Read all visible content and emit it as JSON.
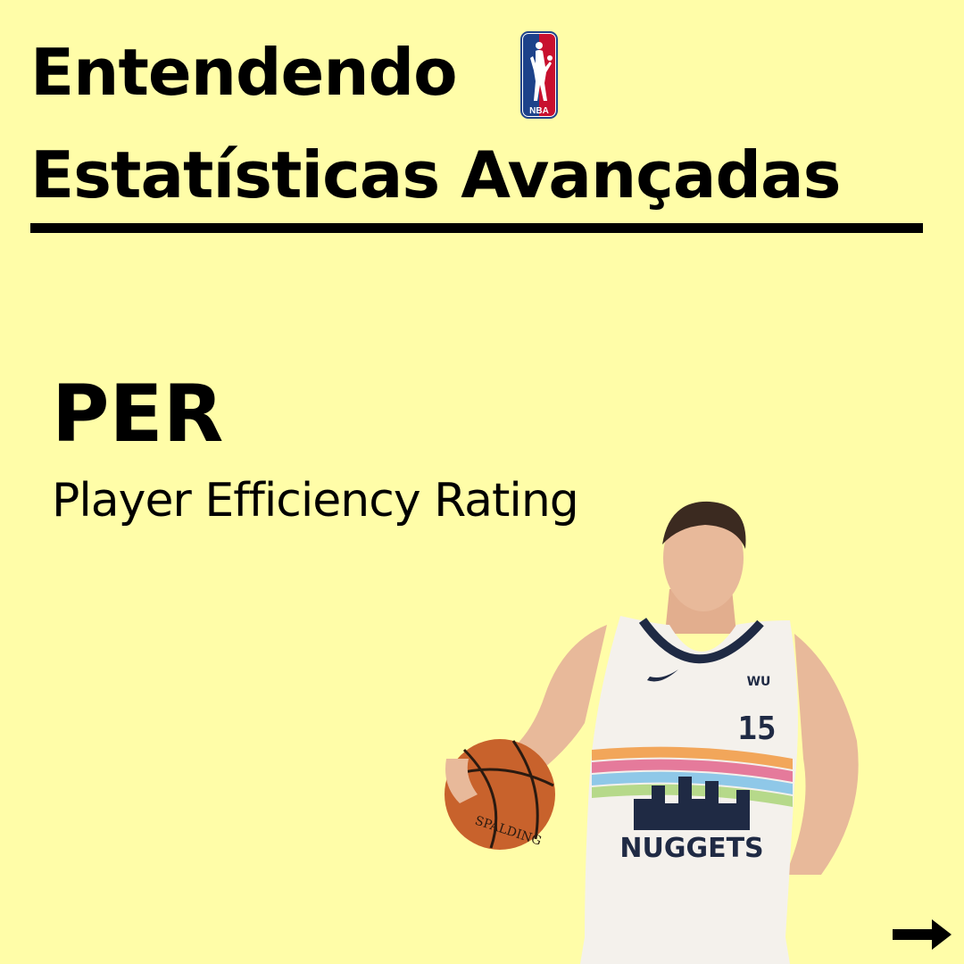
{
  "header": {
    "title_line_1": "Entendendo",
    "title_line_2": "Estatísticas Avançadas",
    "logo": {
      "icon": "nba-logo-icon",
      "text": "NBA",
      "colors": {
        "blue": "#1D428A",
        "red": "#C8102E"
      }
    }
  },
  "stat": {
    "acronym": "PER",
    "full_name": "Player Efficiency Rating"
  },
  "player_photo": {
    "icon": "basketball-player-photo",
    "jersey_team": "NUGGETS",
    "jersey_number": "15",
    "jersey_sponsor": "WU",
    "ball_brand": "SPALDING"
  },
  "navigation": {
    "next_icon": "right-arrow-icon"
  },
  "colors": {
    "background": "#FFFDA8",
    "text": "#000000"
  }
}
